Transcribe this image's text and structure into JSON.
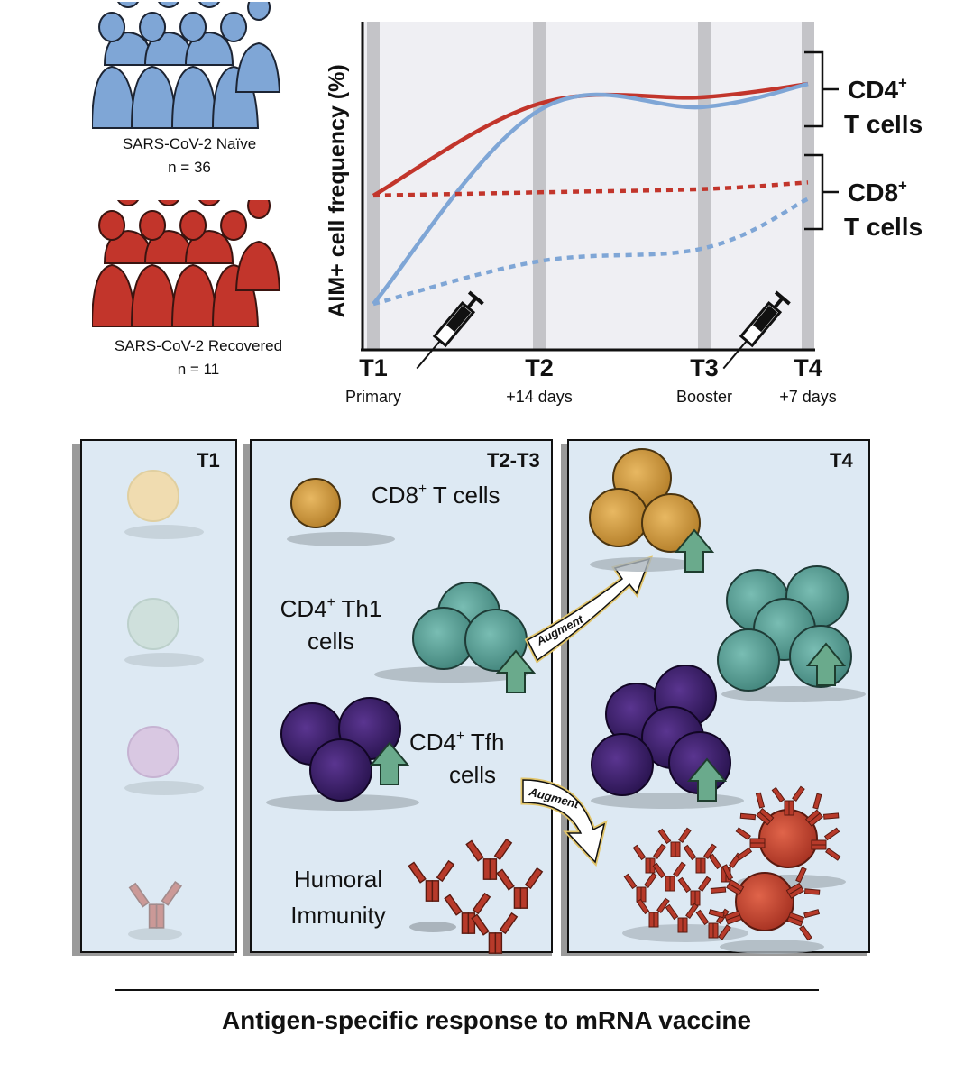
{
  "cohorts": {
    "naive": {
      "name": "SARS-CoV-2 Naïve",
      "n": "n = 36",
      "color": "#7fa6d6"
    },
    "recovered": {
      "name": "SARS-CoV-2 Recovered",
      "n": "n = 11",
      "color": "#c2352b"
    }
  },
  "chart": {
    "y_label": "AIM+ cell frequency (%)",
    "bracket_cd4": {
      "main": "CD4",
      "sup": "+",
      "sub": "T cells"
    },
    "bracket_cd8": {
      "main": "CD8",
      "sup": "+",
      "sub": "T cells"
    },
    "timepoints": [
      {
        "label": "T1",
        "sub": "Primary"
      },
      {
        "label": "T2",
        "sub": "+14 days"
      },
      {
        "label": "T3",
        "sub": "Booster"
      },
      {
        "label": "T4",
        "sub": "+7 days"
      }
    ]
  },
  "chart_data": {
    "type": "line",
    "x": [
      "T1",
      "T2",
      "T3",
      "T4"
    ],
    "series": [
      {
        "values": [
          47,
          75,
          77,
          81
        ],
        "style": "solid",
        "color": "#c2352b"
      },
      {
        "values": [
          14,
          73,
          74,
          81
        ],
        "style": "solid",
        "color": "#7fa6d6"
      },
      {
        "values": [
          47,
          48,
          49,
          51
        ],
        "style": "dotted",
        "color": "#c2352b"
      },
      {
        "values": [
          14,
          27,
          31,
          46
        ],
        "style": "dotted",
        "color": "#7fa6d6"
      }
    ],
    "ylim": [
      0,
      100
    ],
    "ylabel": "AIM+ cell frequency (%)",
    "grid": false
  },
  "panels": {
    "t1": {
      "title": "T1"
    },
    "t23": {
      "title": "T2-T3",
      "cd8": {
        "main": "CD8",
        "sup": "+",
        "rest": " T cells"
      },
      "th1": {
        "main": "CD4",
        "sup": "+",
        "rest": " Th1",
        "line2": "cells"
      },
      "tfh": {
        "main": "CD4",
        "sup": "+",
        "rest": " Tfh",
        "line2": "cells"
      },
      "humoral": {
        "line1": "Humoral",
        "line2": "Immunity"
      }
    },
    "t4": {
      "title": "T4"
    },
    "augment_label": "Augment"
  },
  "footer": {
    "caption": "Antigen-specific response to mRNA vaccine"
  },
  "colors": {
    "panel_bg": "#dde9f3",
    "chart_bg": "#efeff3",
    "cd8_cell": "#d39a3c",
    "th1_cell": "#5aa39a",
    "tfh_cell": "#3a1f6b",
    "antibody": "#b73a2a",
    "arrow_green": "#6aaa8c"
  }
}
